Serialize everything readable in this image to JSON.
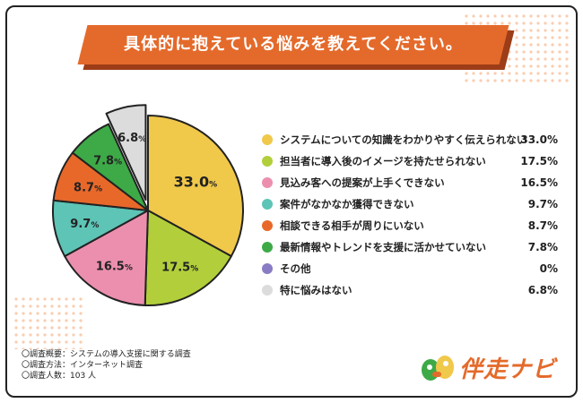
{
  "header": {
    "title": "具体的に抱えている悩みを教えてください。"
  },
  "chart_data": {
    "type": "pie",
    "title": "具体的に抱えている悩みを教えてください。",
    "unit": "%",
    "slices": [
      {
        "label": "システムについての知識をわかりやすく伝えられない",
        "value": 33.0,
        "display": "33.0%",
        "pie_label": "33.0",
        "color": "#f0c84a"
      },
      {
        "label": "担当者に導入後のイメージを持たせられない",
        "value": 17.5,
        "display": "17.5%",
        "pie_label": "17.5",
        "color": "#b2cf3b"
      },
      {
        "label": "見込み客への提案が上手くできない",
        "value": 16.5,
        "display": "16.5%",
        "pie_label": "16.5",
        "color": "#ec8fae"
      },
      {
        "label": "案件がなかなか獲得できない",
        "value": 9.7,
        "display": "9.7%",
        "pie_label": "9.7",
        "color": "#5dc4b6"
      },
      {
        "label": "相談できる相手が周りにいない",
        "value": 8.7,
        "display": "8.7%",
        "pie_label": "8.7",
        "color": "#e8682a"
      },
      {
        "label": "最新情報やトレンドを支援に活かせていない",
        "value": 7.8,
        "display": "7.8%",
        "pie_label": "7.8",
        "color": "#3daa47"
      },
      {
        "label": "その他",
        "value": 0,
        "display": "0%",
        "pie_label": "",
        "color": "#8a7cc4"
      },
      {
        "label": "特に悩みはない",
        "value": 6.8,
        "display": "6.8%",
        "pie_label": "6.8",
        "color": "#dcdcdc",
        "exploded": true
      }
    ]
  },
  "notes": {
    "overview": "〇調査概要：システムの導入支援に関する調査",
    "method": "〇調査方法：インターネット調査",
    "respondents": "〇調査人数：103 人"
  },
  "brand": {
    "name": "伴走ナビ",
    "color": "#e46a2b"
  }
}
